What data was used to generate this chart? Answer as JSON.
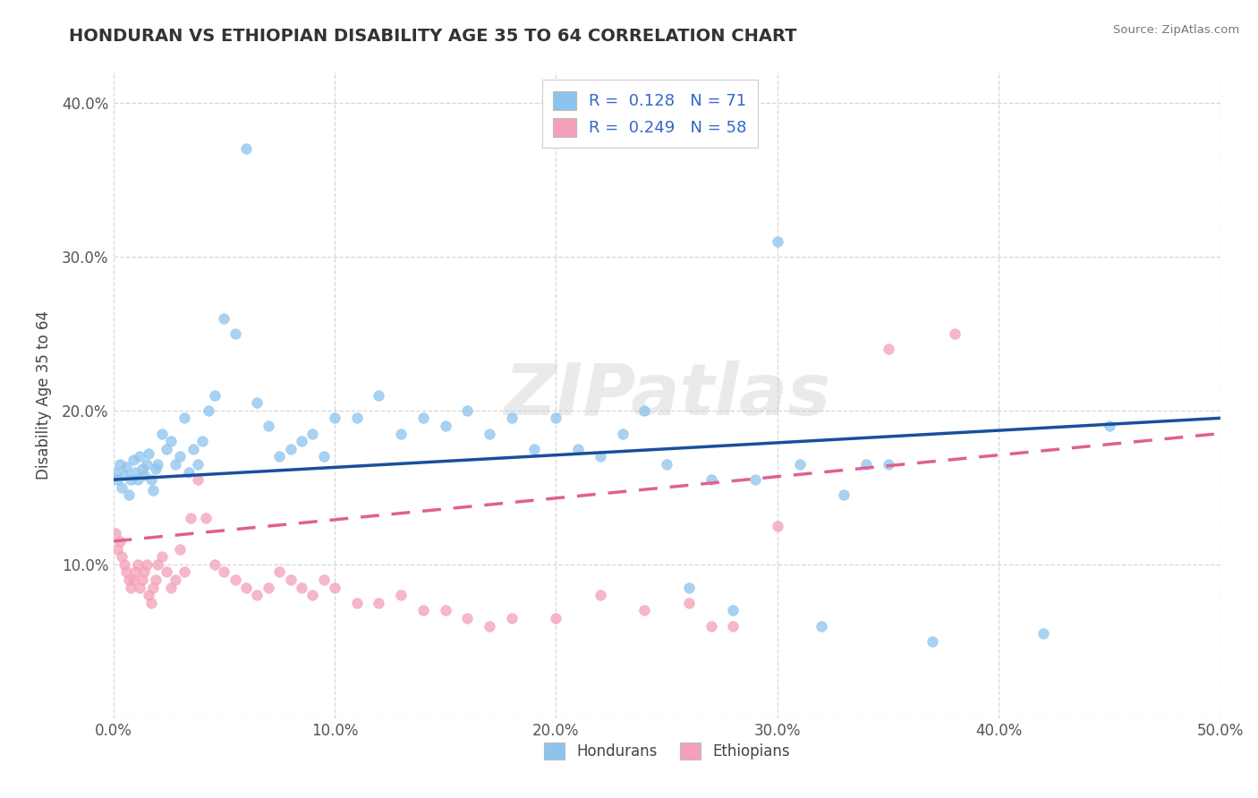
{
  "title": "HONDURAN VS ETHIOPIAN DISABILITY AGE 35 TO 64 CORRELATION CHART",
  "source": "Source: ZipAtlas.com",
  "ylabel": "Disability Age 35 to 64",
  "xlim": [
    0.0,
    0.5
  ],
  "ylim": [
    0.0,
    0.42
  ],
  "xticks": [
    0.0,
    0.1,
    0.2,
    0.3,
    0.4,
    0.5
  ],
  "xticklabels": [
    "0.0%",
    "10.0%",
    "20.0%",
    "30.0%",
    "40.0%",
    "50.0%"
  ],
  "yticks": [
    0.0,
    0.1,
    0.2,
    0.3,
    0.4
  ],
  "yticklabels": [
    "",
    "10.0%",
    "20.0%",
    "30.0%",
    "40.0%"
  ],
  "R_honduran": 0.128,
  "N_honduran": 71,
  "R_ethiopian": 0.249,
  "N_ethiopian": 58,
  "honduran_color": "#8CC4EE",
  "ethiopian_color": "#F4A0B8",
  "honduran_line_color": "#1A4E9C",
  "ethiopian_line_color": "#E06090",
  "hon_line_x": [
    0.0,
    0.5
  ],
  "hon_line_y": [
    0.155,
    0.195
  ],
  "eth_line_x": [
    0.0,
    0.5
  ],
  "eth_line_y": [
    0.115,
    0.185
  ],
  "hon_x": [
    0.001,
    0.002,
    0.003,
    0.004,
    0.005,
    0.006,
    0.007,
    0.008,
    0.009,
    0.01,
    0.011,
    0.012,
    0.013,
    0.014,
    0.015,
    0.016,
    0.017,
    0.018,
    0.019,
    0.02,
    0.022,
    0.024,
    0.026,
    0.028,
    0.03,
    0.032,
    0.034,
    0.036,
    0.038,
    0.04,
    0.043,
    0.046,
    0.05,
    0.055,
    0.06,
    0.065,
    0.07,
    0.075,
    0.08,
    0.085,
    0.09,
    0.095,
    0.1,
    0.11,
    0.12,
    0.13,
    0.14,
    0.15,
    0.16,
    0.17,
    0.18,
    0.19,
    0.2,
    0.21,
    0.22,
    0.23,
    0.24,
    0.25,
    0.26,
    0.27,
    0.28,
    0.29,
    0.3,
    0.31,
    0.32,
    0.33,
    0.34,
    0.35,
    0.37,
    0.42,
    0.45
  ],
  "hon_y": [
    0.16,
    0.155,
    0.165,
    0.15,
    0.158,
    0.163,
    0.145,
    0.155,
    0.168,
    0.16,
    0.155,
    0.17,
    0.162,
    0.158,
    0.165,
    0.172,
    0.155,
    0.148,
    0.162,
    0.165,
    0.185,
    0.175,
    0.18,
    0.165,
    0.17,
    0.195,
    0.16,
    0.175,
    0.165,
    0.18,
    0.2,
    0.21,
    0.26,
    0.25,
    0.37,
    0.205,
    0.19,
    0.17,
    0.175,
    0.18,
    0.185,
    0.17,
    0.195,
    0.195,
    0.21,
    0.185,
    0.195,
    0.19,
    0.2,
    0.185,
    0.195,
    0.175,
    0.195,
    0.175,
    0.17,
    0.185,
    0.2,
    0.165,
    0.085,
    0.155,
    0.07,
    0.155,
    0.31,
    0.165,
    0.06,
    0.145,
    0.165,
    0.165,
    0.05,
    0.055,
    0.19
  ],
  "eth_x": [
    0.001,
    0.002,
    0.003,
    0.004,
    0.005,
    0.006,
    0.007,
    0.008,
    0.009,
    0.01,
    0.011,
    0.012,
    0.013,
    0.014,
    0.015,
    0.016,
    0.017,
    0.018,
    0.019,
    0.02,
    0.022,
    0.024,
    0.026,
    0.028,
    0.03,
    0.032,
    0.035,
    0.038,
    0.042,
    0.046,
    0.05,
    0.055,
    0.06,
    0.065,
    0.07,
    0.075,
    0.08,
    0.085,
    0.09,
    0.095,
    0.1,
    0.11,
    0.12,
    0.13,
    0.14,
    0.15,
    0.16,
    0.17,
    0.18,
    0.2,
    0.22,
    0.24,
    0.26,
    0.27,
    0.28,
    0.3,
    0.35,
    0.38
  ],
  "eth_y": [
    0.12,
    0.11,
    0.115,
    0.105,
    0.1,
    0.095,
    0.09,
    0.085,
    0.09,
    0.095,
    0.1,
    0.085,
    0.09,
    0.095,
    0.1,
    0.08,
    0.075,
    0.085,
    0.09,
    0.1,
    0.105,
    0.095,
    0.085,
    0.09,
    0.11,
    0.095,
    0.13,
    0.155,
    0.13,
    0.1,
    0.095,
    0.09,
    0.085,
    0.08,
    0.085,
    0.095,
    0.09,
    0.085,
    0.08,
    0.09,
    0.085,
    0.075,
    0.075,
    0.08,
    0.07,
    0.07,
    0.065,
    0.06,
    0.065,
    0.065,
    0.08,
    0.07,
    0.075,
    0.06,
    0.06,
    0.125,
    0.24,
    0.25
  ]
}
